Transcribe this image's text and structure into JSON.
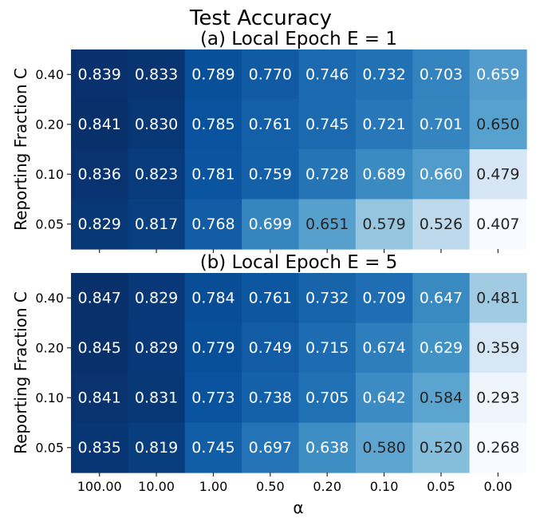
{
  "figure": {
    "suptitle": "Test Accuracy",
    "xlabel": "α"
  },
  "chart_data": [
    {
      "type": "heatmap",
      "title": "(a) Local Epoch E = 1",
      "ylabel": "Reporting Fraction C",
      "xlabel": "",
      "x_categories": [
        "100.00",
        "10.00",
        "1.00",
        "0.50",
        "0.20",
        "0.10",
        "0.05",
        "0.00"
      ],
      "y_categories": [
        "0.40",
        "0.20",
        "0.10",
        "0.05"
      ],
      "values": [
        [
          0.839,
          0.833,
          0.789,
          0.77,
          0.746,
          0.732,
          0.703,
          0.659
        ],
        [
          0.841,
          0.83,
          0.785,
          0.761,
          0.745,
          0.721,
          0.701,
          0.65
        ],
        [
          0.836,
          0.823,
          0.781,
          0.759,
          0.728,
          0.689,
          0.66,
          0.479
        ],
        [
          0.829,
          0.817,
          0.768,
          0.699,
          0.651,
          0.579,
          0.526,
          0.407
        ]
      ],
      "colormap": "Blues",
      "x_tick_labels_shown": false
    },
    {
      "type": "heatmap",
      "title": "(b) Local Epoch E = 5",
      "ylabel": "Reporting Fraction C",
      "xlabel": "α",
      "x_categories": [
        "100.00",
        "10.00",
        "1.00",
        "0.50",
        "0.20",
        "0.10",
        "0.05",
        "0.00"
      ],
      "y_categories": [
        "0.40",
        "0.20",
        "0.10",
        "0.05"
      ],
      "values": [
        [
          0.847,
          0.829,
          0.784,
          0.761,
          0.732,
          0.709,
          0.647,
          0.481
        ],
        [
          0.845,
          0.829,
          0.779,
          0.749,
          0.715,
          0.674,
          0.629,
          0.359
        ],
        [
          0.841,
          0.831,
          0.773,
          0.738,
          0.705,
          0.642,
          0.584,
          0.293
        ],
        [
          0.835,
          0.819,
          0.745,
          0.697,
          0.638,
          0.58,
          0.52,
          0.268
        ]
      ],
      "colormap": "Blues",
      "x_tick_labels_shown": true
    }
  ]
}
